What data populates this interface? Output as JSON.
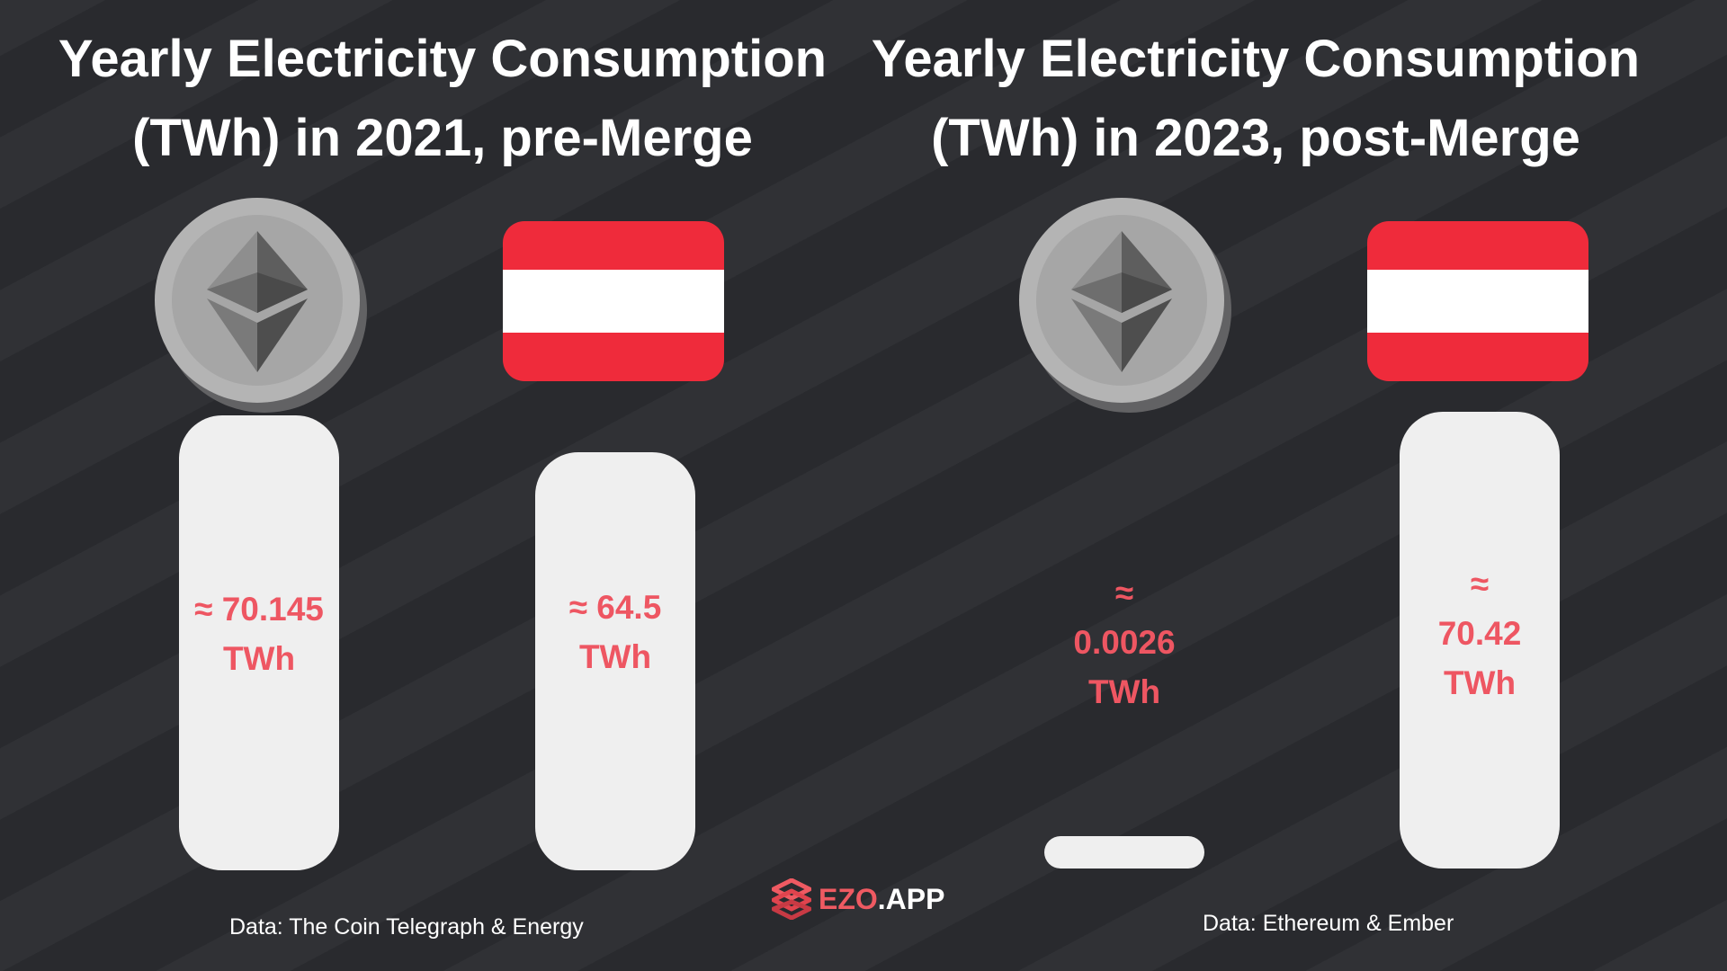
{
  "colors": {
    "background": "#2b2c30",
    "bar": "#efefef",
    "label": "#ee5662",
    "flag_red": "#ef2b3b",
    "flag_white": "#ffffff",
    "coin": "#b4b4b4"
  },
  "chart_data": [
    {
      "type": "bar",
      "title_lines": [
        "Yearly Electricity Consumption",
        "(TWh) in 2021, pre-Merge"
      ],
      "categories": [
        "Ethereum",
        "Austria"
      ],
      "category_icons": [
        "ethereum-coin-icon",
        "austria-flag-icon"
      ],
      "values": [
        70.145,
        64.5
      ],
      "value_labels": [
        [
          "≈ 70.145",
          "TWh"
        ],
        [
          "≈ 64.5",
          "TWh"
        ]
      ],
      "ylim": [
        0,
        70.42
      ],
      "source": "Data: The Coin Telegraph & Energy"
    },
    {
      "type": "bar",
      "title_lines": [
        "Yearly Electricity Consumption",
        "(TWh) in 2023, post-Merge"
      ],
      "categories": [
        "Ethereum",
        "Austria"
      ],
      "category_icons": [
        "ethereum-coin-icon",
        "austria-flag-icon"
      ],
      "values": [
        0.0026,
        70.42
      ],
      "value_labels": [
        [
          "≈",
          "0.0026",
          "TWh"
        ],
        [
          "≈",
          "70.42",
          "TWh"
        ]
      ],
      "ylim": [
        0,
        70.42
      ],
      "source": "Data: Ethereum & Ember"
    }
  ],
  "logo": {
    "brand": "EZO",
    "suffix": ".APP"
  }
}
